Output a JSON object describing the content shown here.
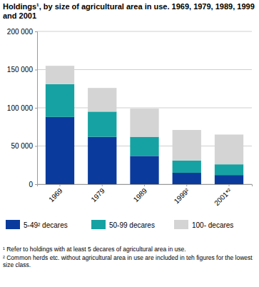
{
  "chart_data": {
    "type": "bar",
    "title": "Holdings¹, by size of agricultural area in use. 1969, 1979, 1989, 1999 and 2001",
    "categories": [
      "1969",
      "1979",
      "1989",
      "1999²",
      "2001*²"
    ],
    "series": [
      {
        "name": "5-49² decares",
        "color": "#0a3b9c",
        "values": [
          88000,
          62000,
          37000,
          15000,
          12000
        ]
      },
      {
        "name": "50-99 decares",
        "color": "#16a2a2",
        "values": [
          43000,
          33000,
          25000,
          16000,
          14000
        ]
      },
      {
        "name": "100- decares",
        "color": "#d4d4d4",
        "values": [
          24000,
          31000,
          37000,
          40000,
          39000
        ]
      }
    ],
    "stacked": true,
    "grid": true,
    "legend": "bottom",
    "ylim": [
      0,
      200000
    ],
    "yticks": [
      0,
      {
        "value": 50000,
        "label": "50 000"
      },
      {
        "value": 100000,
        "label": "100 000"
      },
      {
        "value": 150000,
        "label": "150 000"
      },
      {
        "value": 200000,
        "label": "200 000"
      }
    ],
    "annotations": [
      "¹ Refer to holdings with at least 5 decares of agricultural area in use.",
      "² Common herds etc. without agricultural area in use are included in teh figures for the lowest size class."
    ]
  }
}
